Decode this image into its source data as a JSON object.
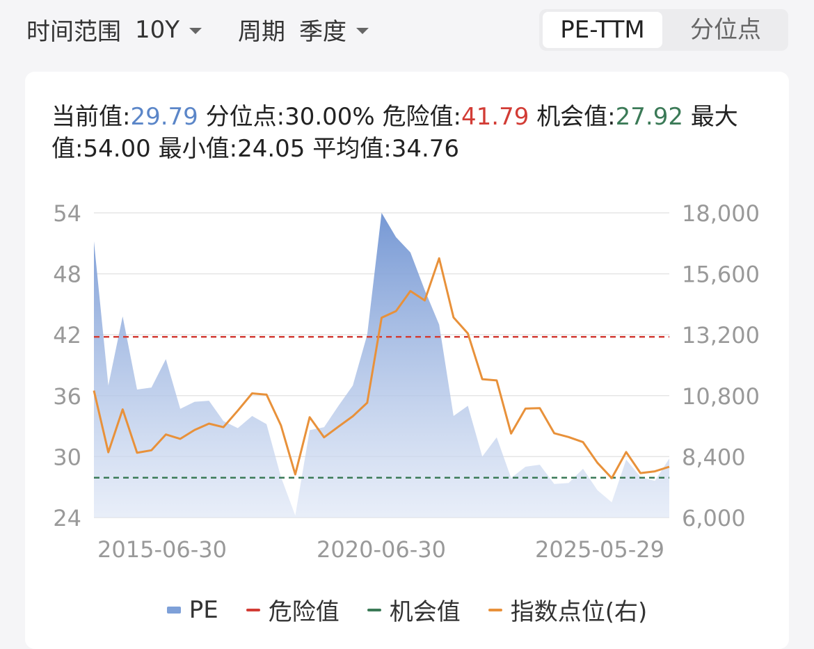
{
  "toolbar": {
    "range_label": "时间范围",
    "range_value": "10Y",
    "period_label": "周期",
    "period_value": "季度",
    "tabs": [
      {
        "label": "PE-TTM",
        "active": true
      },
      {
        "label": "分位点",
        "active": false
      }
    ]
  },
  "stats": {
    "current_label": "当前值:",
    "current": "29.79",
    "percentile_label": "分位点:",
    "percentile": "30.00%",
    "danger_label": "危险值:",
    "danger": "41.79",
    "chance_label": "机会值:",
    "chance": "27.92",
    "max_label": "最大值:",
    "max": "54.00",
    "min_label": "最小值:",
    "min": "24.05",
    "avg_label": "平均值:",
    "avg": "34.76"
  },
  "colors": {
    "pe": "#7ea0d8",
    "danger": "#d23c35",
    "chance": "#3b7a57",
    "index": "#e8913a"
  },
  "chart_data": {
    "type": "area",
    "x_ticks": [
      "2015-06-30",
      "2020-06-30",
      "2025-05-29"
    ],
    "left_axis": {
      "ticks": [
        54,
        48,
        42,
        36,
        30,
        24
      ],
      "range": [
        24,
        54
      ]
    },
    "right_axis": {
      "ticks": [
        "18,000",
        "15,600",
        "13,200",
        "10,800",
        "8,400",
        "6,000"
      ],
      "range": [
        6000,
        18000
      ]
    },
    "grid": true,
    "legend_position": "bottom",
    "series": [
      {
        "name": "PE",
        "type": "area",
        "axis": "left",
        "values": [
          51.2,
          37.0,
          43.8,
          36.6,
          36.8,
          39.6,
          34.7,
          35.4,
          35.5,
          33.5,
          32.8,
          34.0,
          33.2,
          28.0,
          24.2,
          32.6,
          32.9,
          35.0,
          37.0,
          42.0,
          54.0,
          51.6,
          50.1,
          46.4,
          43.0,
          34.0,
          35.0,
          30.0,
          31.9,
          27.9,
          29.0,
          29.2,
          27.3,
          27.4,
          28.8,
          26.7,
          25.5,
          29.7,
          28.0,
          27.6,
          29.8
        ]
      },
      {
        "name": "危险值",
        "type": "line",
        "axis": "left",
        "value": 41.79
      },
      {
        "name": "机会值",
        "type": "line",
        "axis": "left",
        "value": 27.92
      },
      {
        "name": "指数点位(右)",
        "type": "line",
        "axis": "right",
        "values": [
          11000,
          8570,
          10260,
          8550,
          8650,
          9270,
          9100,
          9450,
          9700,
          9560,
          10210,
          10890,
          10840,
          9630,
          7700,
          9950,
          9160,
          9580,
          9990,
          10520,
          13870,
          14130,
          14920,
          14550,
          16210,
          13880,
          13250,
          11450,
          11400,
          9310,
          10290,
          10310,
          9320,
          9170,
          8970,
          8160,
          7550,
          8580,
          7750,
          7820,
          8000
        ]
      }
    ]
  }
}
